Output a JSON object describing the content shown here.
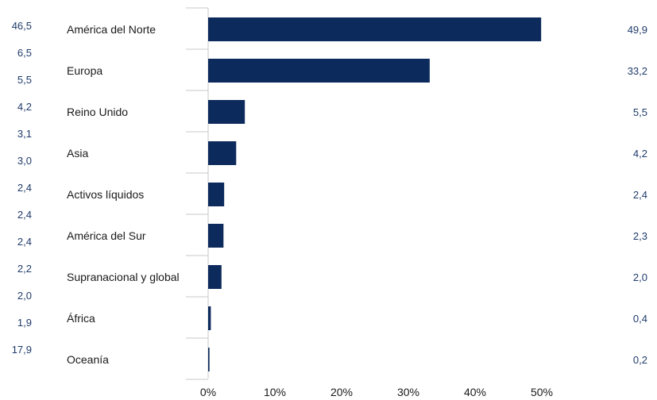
{
  "chart_data": {
    "type": "bar",
    "orientation": "horizontal",
    "categories": [
      "América del Norte",
      "Europa",
      "Reino Unido",
      "Asia",
      "Activos líquidos",
      "América del Sur",
      "Supranacional y global",
      "África",
      "Oceanía"
    ],
    "values": [
      49.9,
      33.2,
      5.5,
      4.2,
      2.4,
      2.3,
      2.0,
      0.4,
      0.2
    ],
    "value_labels": [
      "49,9",
      "33,2",
      "5,5",
      "4,2",
      "2,4",
      "2,3",
      "2,0",
      "0,4",
      "0,2"
    ],
    "left_labels": [
      "46,5",
      "6,5",
      "5,5",
      "4,2",
      "3,1",
      "3,0",
      "2,4",
      "2,4",
      "2,4",
      "2,2",
      "2,0",
      "1,9",
      "17,9"
    ],
    "x_ticks": [
      "0%",
      "10%",
      "20%",
      "30%",
      "40%",
      "50%"
    ],
    "xlim": [
      0,
      50
    ],
    "title": "",
    "xlabel": "",
    "ylabel": "",
    "grid": false,
    "legend": "none",
    "colors": {
      "bar": "#0c2a5b",
      "value_text": "#1f3b6b",
      "axis": "#c8c8c8"
    }
  }
}
